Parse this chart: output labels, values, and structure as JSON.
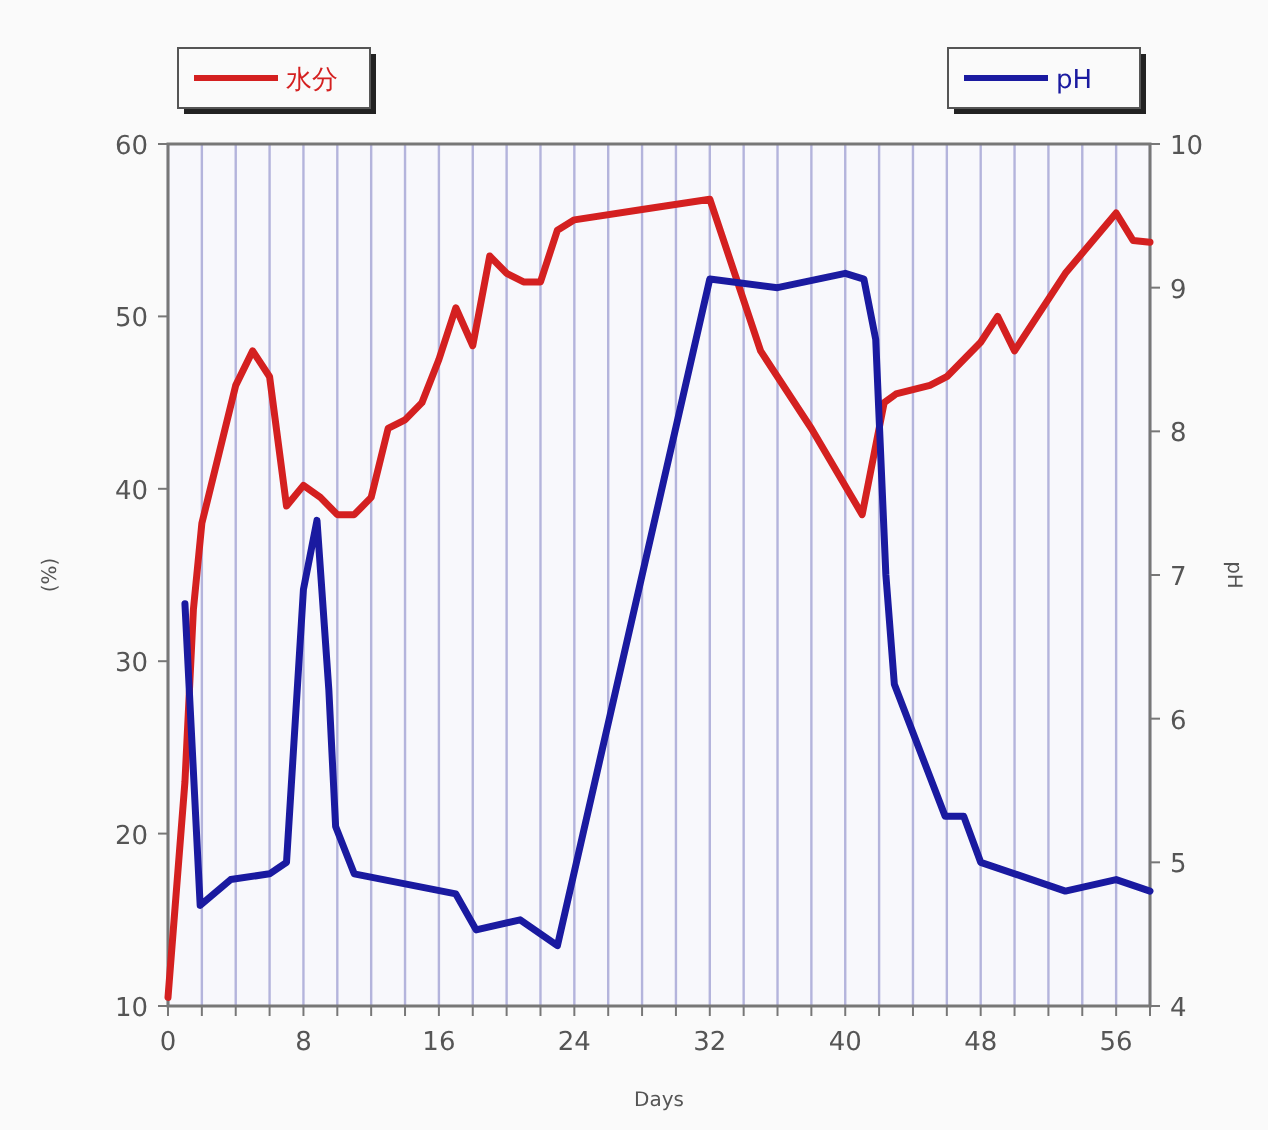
{
  "chart_data": {
    "type": "line",
    "xlabel": "Days",
    "ylabel": "(%)",
    "y2label": "pH",
    "xlim": [
      0,
      58
    ],
    "ylim": [
      10,
      60
    ],
    "y2lim": [
      4,
      10
    ],
    "xticks": [
      0,
      {
        "value": 2,
        "label": null
      },
      {
        "value": 4,
        "label": null
      },
      {
        "value": 6,
        "label": null
      },
      8,
      {
        "value": 10,
        "label": null
      },
      {
        "value": 12,
        "label": null
      },
      {
        "value": 14,
        "label": null
      },
      16,
      {
        "value": 18,
        "label": null
      },
      {
        "value": 20,
        "label": null
      },
      {
        "value": 22,
        "label": null
      },
      24,
      {
        "value": 26,
        "label": null
      },
      {
        "value": 28,
        "label": null
      },
      {
        "value": 30,
        "label": null
      },
      32,
      {
        "value": 34,
        "label": null
      },
      {
        "value": 36,
        "label": null
      },
      {
        "value": 38,
        "label": null
      },
      40,
      {
        "value": 42,
        "label": null
      },
      {
        "value": 44,
        "label": null
      },
      {
        "value": 46,
        "label": null
      },
      48,
      {
        "value": 50,
        "label": null
      },
      {
        "value": 52,
        "label": null
      },
      {
        "value": 54,
        "label": null
      },
      56,
      {
        "value": 58,
        "label": null
      }
    ],
    "yticks": [
      10,
      20,
      30,
      40,
      50,
      60
    ],
    "y2ticks": [
      4,
      5,
      6,
      7,
      8,
      9,
      10
    ],
    "grid": "x",
    "legend": "top",
    "marker": "none",
    "line_style": "solid",
    "series": [
      {
        "name": "水分",
        "color": "#d42020",
        "x": [
          0,
          1,
          1.5,
          2,
          3,
          4,
          5,
          6,
          7,
          8,
          9,
          10,
          11,
          12,
          13,
          14,
          15,
          16,
          17,
          18,
          19,
          20,
          21,
          22,
          23,
          24,
          28,
          32,
          35,
          38,
          41,
          42.3,
          43,
          45,
          46,
          47,
          48,
          49,
          50,
          53,
          56,
          57,
          58
        ],
        "values": [
          10.5,
          23,
          33,
          38,
          42,
          46,
          48,
          46.5,
          39,
          40.2,
          39.5,
          38.5,
          38.5,
          39.5,
          43.5,
          44,
          45,
          47.5,
          50.5,
          48.3,
          53.5,
          52.5,
          52,
          52,
          55,
          55.6,
          56.2,
          56.8,
          48,
          43.5,
          38.5,
          45,
          45.5,
          46,
          46.5,
          47.5,
          48.5,
          50,
          48,
          52.5,
          56,
          54.4,
          54.3
        ]
      },
      {
        "name": "pH",
        "color": "#1a1aa0",
        "axis": "y2",
        "x": [
          1,
          1.9,
          3.7,
          6,
          7,
          8,
          8.8,
          9.5,
          9.9,
          11,
          17,
          18.2,
          20.8,
          23,
          32,
          36,
          40,
          41.1,
          41.8,
          42.4,
          42.9,
          45.9,
          47,
          48,
          53,
          56,
          58
        ],
        "values": [
          6.8,
          4.7,
          4.88,
          4.92,
          5.0,
          6.9,
          7.38,
          6.2,
          5.25,
          4.92,
          4.78,
          4.53,
          4.6,
          4.42,
          9.06,
          9.0,
          9.1,
          9.06,
          8.64,
          7.0,
          6.24,
          5.32,
          5.32,
          5.0,
          4.8,
          4.88,
          4.8
        ]
      }
    ]
  }
}
